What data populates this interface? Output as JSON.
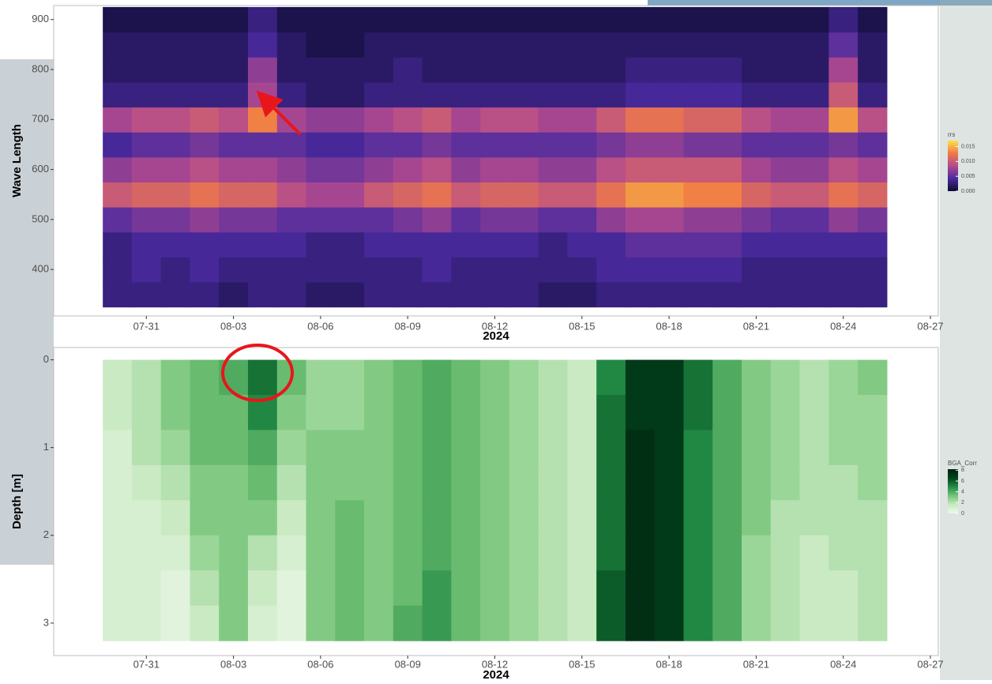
{
  "chart_data": [
    {
      "type": "heatmap",
      "xlabel": "2024",
      "ylabel": "Wave Length",
      "x": [
        "2024-07-30",
        "2024-07-31",
        "2024-08-01",
        "2024-08-02",
        "2024-08-03",
        "2024-08-04",
        "2024-08-05",
        "2024-08-06",
        "2024-08-07",
        "2024-08-08",
        "2024-08-09",
        "2024-08-10",
        "2024-08-11",
        "2024-08-12",
        "2024-08-13",
        "2024-08-14",
        "2024-08-15",
        "2024-08-16",
        "2024-08-17",
        "2024-08-18",
        "2024-08-19",
        "2024-08-20",
        "2024-08-21",
        "2024-08-22",
        "2024-08-23",
        "2024-08-24",
        "2024-08-25"
      ],
      "y": [
        350,
        400,
        450,
        500,
        550,
        600,
        650,
        700,
        750,
        800,
        850,
        900
      ],
      "z": [
        [
          0.003,
          0.003,
          0.003,
          0.003,
          0.002,
          0.003,
          0.003,
          0.002,
          0.002,
          0.003,
          0.003,
          0.003,
          0.003,
          0.003,
          0.003,
          0.002,
          0.002,
          0.003,
          0.003,
          0.003,
          0.003,
          0.003,
          0.003,
          0.003,
          0.003,
          0.003,
          0.003
        ],
        [
          0.003,
          0.004,
          0.003,
          0.004,
          0.003,
          0.003,
          0.003,
          0.003,
          0.003,
          0.003,
          0.003,
          0.004,
          0.003,
          0.003,
          0.003,
          0.003,
          0.003,
          0.004,
          0.004,
          0.004,
          0.004,
          0.004,
          0.003,
          0.003,
          0.003,
          0.003,
          0.003
        ],
        [
          0.003,
          0.004,
          0.004,
          0.004,
          0.004,
          0.004,
          0.004,
          0.003,
          0.003,
          0.004,
          0.004,
          0.004,
          0.004,
          0.004,
          0.004,
          0.003,
          0.004,
          0.004,
          0.005,
          0.005,
          0.005,
          0.005,
          0.004,
          0.004,
          0.004,
          0.004,
          0.004
        ],
        [
          0.005,
          0.006,
          0.006,
          0.007,
          0.006,
          0.006,
          0.005,
          0.005,
          0.005,
          0.005,
          0.006,
          0.007,
          0.005,
          0.006,
          0.006,
          0.005,
          0.005,
          0.007,
          0.008,
          0.008,
          0.007,
          0.007,
          0.006,
          0.005,
          0.005,
          0.007,
          0.006
        ],
        [
          0.01,
          0.011,
          0.011,
          0.012,
          0.011,
          0.011,
          0.009,
          0.008,
          0.008,
          0.01,
          0.011,
          0.012,
          0.01,
          0.011,
          0.011,
          0.01,
          0.01,
          0.012,
          0.014,
          0.014,
          0.013,
          0.013,
          0.011,
          0.01,
          0.01,
          0.012,
          0.011
        ],
        [
          0.007,
          0.008,
          0.008,
          0.009,
          0.008,
          0.008,
          0.007,
          0.006,
          0.006,
          0.007,
          0.008,
          0.009,
          0.007,
          0.008,
          0.008,
          0.007,
          0.007,
          0.009,
          0.01,
          0.01,
          0.01,
          0.01,
          0.008,
          0.007,
          0.007,
          0.009,
          0.008
        ],
        [
          0.004,
          0.005,
          0.005,
          0.006,
          0.005,
          0.005,
          0.005,
          0.004,
          0.004,
          0.005,
          0.005,
          0.006,
          0.005,
          0.005,
          0.005,
          0.005,
          0.005,
          0.006,
          0.007,
          0.007,
          0.006,
          0.006,
          0.005,
          0.005,
          0.005,
          0.006,
          0.005
        ],
        [
          0.008,
          0.009,
          0.009,
          0.01,
          0.009,
          0.013,
          0.008,
          0.007,
          0.007,
          0.008,
          0.009,
          0.01,
          0.008,
          0.009,
          0.009,
          0.008,
          0.008,
          0.01,
          0.012,
          0.012,
          0.011,
          0.011,
          0.009,
          0.008,
          0.008,
          0.014,
          0.009
        ],
        [
          0.003,
          0.003,
          0.003,
          0.003,
          0.003,
          0.008,
          0.003,
          0.002,
          0.002,
          0.003,
          0.003,
          0.003,
          0.003,
          0.003,
          0.003,
          0.003,
          0.003,
          0.003,
          0.004,
          0.004,
          0.004,
          0.004,
          0.003,
          0.003,
          0.003,
          0.01,
          0.003
        ],
        [
          0.002,
          0.002,
          0.002,
          0.002,
          0.002,
          0.007,
          0.002,
          0.002,
          0.002,
          0.002,
          0.003,
          0.002,
          0.002,
          0.002,
          0.002,
          0.002,
          0.002,
          0.002,
          0.003,
          0.003,
          0.003,
          0.003,
          0.002,
          0.002,
          0.002,
          0.008,
          0.002
        ],
        [
          0.002,
          0.002,
          0.002,
          0.002,
          0.002,
          0.004,
          0.002,
          0.001,
          0.001,
          0.002,
          0.002,
          0.002,
          0.002,
          0.002,
          0.002,
          0.002,
          0.002,
          0.002,
          0.002,
          0.002,
          0.002,
          0.002,
          0.002,
          0.002,
          0.002,
          0.005,
          0.002
        ],
        [
          0.001,
          0.001,
          0.001,
          0.001,
          0.001,
          0.003,
          0.001,
          0.001,
          0.001,
          0.001,
          0.001,
          0.001,
          0.001,
          0.001,
          0.001,
          0.001,
          0.001,
          0.001,
          0.001,
          0.001,
          0.001,
          0.001,
          0.001,
          0.001,
          0.001,
          0.003,
          0.001
        ]
      ],
      "xlim": [
        "2024-07-28",
        "2024-08-27"
      ],
      "xticks": [
        {
          "value": "2024-07-31",
          "label": "07-31"
        },
        {
          "value": "2024-08-03",
          "label": "08-03"
        },
        {
          "value": "2024-08-06",
          "label": "08-06"
        },
        {
          "value": "2024-08-09",
          "label": "08-09"
        },
        {
          "value": "2024-08-12",
          "label": "08-12"
        },
        {
          "value": "2024-08-15",
          "label": "08-15"
        },
        {
          "value": "2024-08-18",
          "label": "08-18"
        },
        {
          "value": "2024-08-21",
          "label": "08-21"
        },
        {
          "value": "2024-08-24",
          "label": "08-24"
        },
        {
          "value": "2024-08-27",
          "label": "08-27"
        }
      ],
      "ylim": [
        307,
        928
      ],
      "yticks": [
        400,
        500,
        600,
        700,
        800,
        900
      ],
      "y_reversed": false,
      "colorbar": {
        "title": "rrs",
        "lim": [
          0,
          0.017
        ],
        "colors": [
          "#0d0b33",
          "#4b2a9e",
          "#b24a8f",
          "#f07a45",
          "#fbe24a"
        ],
        "ticks": [
          {
            "value": 0,
            "label": "0.000"
          },
          {
            "value": 0.005,
            "label": "0.005"
          },
          {
            "value": 0.01,
            "label": "0.010"
          },
          {
            "value": 0.015,
            "label": "0.015"
          }
        ]
      }
    },
    {
      "type": "heatmap",
      "xlabel": "2024",
      "ylabel": "Depth [m]",
      "x": [
        "2024-07-30",
        "2024-07-31",
        "2024-08-01",
        "2024-08-02",
        "2024-08-03",
        "2024-08-04",
        "2024-08-05",
        "2024-08-06",
        "2024-08-07",
        "2024-08-08",
        "2024-08-09",
        "2024-08-10",
        "2024-08-11",
        "2024-08-12",
        "2024-08-13",
        "2024-08-14",
        "2024-08-15",
        "2024-08-16",
        "2024-08-17",
        "2024-08-18",
        "2024-08-19",
        "2024-08-20",
        "2024-08-21",
        "2024-08-22",
        "2024-08-23",
        "2024-08-24",
        "2024-08-25"
      ],
      "y": [
        0.2,
        0.6,
        1.0,
        1.4,
        1.8,
        2.2,
        2.6,
        3.0
      ],
      "z": [
        [
          1.5,
          2.0,
          3.0,
          3.5,
          4.0,
          5.5,
          3.5,
          2.5,
          2.5,
          3.0,
          3.5,
          4.0,
          3.5,
          3.0,
          2.5,
          2.0,
          1.5,
          5.0,
          7.0,
          7.0,
          5.5,
          4.0,
          3.0,
          2.5,
          2.0,
          2.5,
          3.0
        ],
        [
          1.5,
          2.0,
          3.0,
          3.5,
          3.5,
          5.0,
          3.0,
          2.5,
          2.5,
          3.0,
          3.5,
          4.0,
          3.5,
          3.0,
          2.5,
          2.0,
          1.5,
          5.5,
          7.0,
          7.0,
          5.5,
          4.0,
          3.0,
          2.5,
          2.0,
          2.5,
          2.5
        ],
        [
          1.0,
          2.0,
          2.5,
          3.5,
          3.5,
          4.0,
          2.5,
          3.0,
          3.0,
          3.0,
          3.5,
          4.0,
          3.5,
          3.0,
          2.5,
          2.0,
          1.5,
          5.5,
          7.5,
          7.0,
          5.0,
          4.0,
          3.0,
          2.5,
          2.0,
          2.5,
          2.5
        ],
        [
          1.0,
          1.5,
          2.0,
          3.0,
          3.0,
          3.5,
          2.0,
          3.0,
          3.0,
          3.0,
          3.5,
          4.0,
          3.5,
          3.0,
          2.5,
          2.0,
          1.5,
          5.5,
          7.5,
          7.0,
          5.0,
          4.0,
          3.0,
          2.5,
          2.0,
          2.0,
          2.5
        ],
        [
          1.0,
          1.0,
          1.5,
          3.0,
          3.0,
          3.0,
          1.5,
          3.0,
          3.5,
          3.0,
          3.5,
          4.0,
          3.5,
          3.0,
          2.5,
          2.0,
          1.5,
          5.5,
          7.5,
          7.0,
          5.0,
          4.0,
          3.0,
          2.0,
          2.0,
          2.0,
          2.0
        ],
        [
          1.0,
          1.0,
          1.0,
          2.5,
          3.0,
          2.0,
          1.0,
          3.0,
          3.5,
          3.0,
          3.5,
          4.0,
          3.5,
          3.0,
          2.5,
          2.0,
          1.5,
          5.5,
          7.5,
          7.0,
          5.0,
          4.0,
          2.5,
          2.0,
          1.5,
          2.0,
          2.0
        ],
        [
          1.0,
          1.0,
          0.5,
          2.0,
          3.0,
          1.5,
          0.5,
          3.0,
          3.5,
          3.0,
          3.5,
          4.5,
          3.5,
          3.0,
          2.5,
          2.0,
          1.5,
          6.0,
          7.5,
          7.0,
          5.0,
          4.0,
          2.5,
          2.0,
          1.5,
          1.5,
          2.0
        ],
        [
          1.0,
          1.0,
          0.5,
          1.5,
          3.0,
          1.0,
          0.5,
          3.0,
          3.5,
          3.0,
          4.0,
          4.5,
          3.5,
          3.0,
          2.5,
          2.0,
          1.5,
          6.0,
          7.5,
          7.0,
          5.0,
          4.0,
          2.5,
          2.0,
          1.5,
          1.5,
          2.0
        ]
      ],
      "xlim": [
        "2024-07-28",
        "2024-08-27"
      ],
      "xticks": [
        {
          "value": "2024-07-31",
          "label": "07-31"
        },
        {
          "value": "2024-08-03",
          "label": "08-03"
        },
        {
          "value": "2024-08-06",
          "label": "08-06"
        },
        {
          "value": "2024-08-09",
          "label": "08-09"
        },
        {
          "value": "2024-08-12",
          "label": "08-12"
        },
        {
          "value": "2024-08-15",
          "label": "08-15"
        },
        {
          "value": "2024-08-18",
          "label": "08-18"
        },
        {
          "value": "2024-08-21",
          "label": "08-21"
        },
        {
          "value": "2024-08-24",
          "label": "08-24"
        },
        {
          "value": "2024-08-27",
          "label": "08-27"
        }
      ],
      "ylim": [
        -0.14,
        3.37
      ],
      "yticks": [
        0,
        1,
        2,
        3
      ],
      "y_reversed": true,
      "colorbar": {
        "title": "BGA_Corr",
        "lim": [
          0,
          8.2
        ],
        "colors": [
          "#eef8ea",
          "#c7e9c0",
          "#74c476",
          "#238b45",
          "#00441b",
          "#00200e"
        ],
        "ticks": [
          0,
          2,
          4,
          6,
          8
        ]
      }
    }
  ]
}
